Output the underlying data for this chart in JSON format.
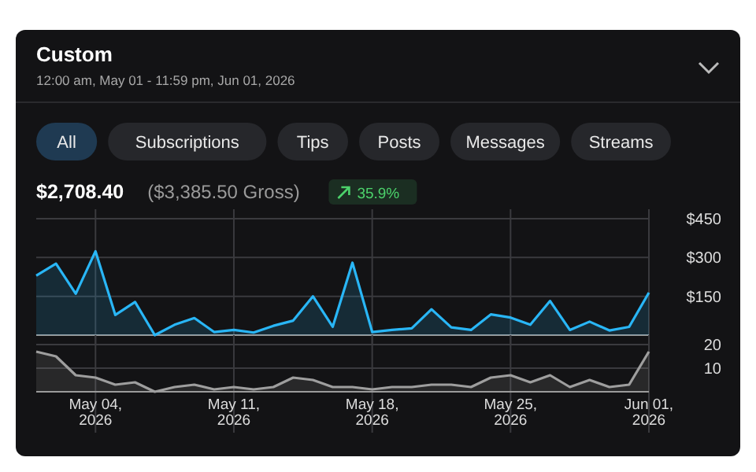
{
  "chart_data": [
    {
      "type": "area",
      "title": "Custom",
      "subtitle": "12:00 am, May 01 - 11:59 pm, Jun 01, 2026",
      "annotations": [
        "All",
        "Subscriptions",
        "Tips",
        "Posts",
        "Messages",
        "Streams",
        "$2,708.40",
        "($3,385.50 Gross)",
        "35.9%"
      ],
      "x": [
        "2026-05-01",
        "2026-05-02",
        "2026-05-03",
        "2026-05-04",
        "2026-05-05",
        "2026-05-06",
        "2026-05-07",
        "2026-05-08",
        "2026-05-09",
        "2026-05-10",
        "2026-05-11",
        "2026-05-12",
        "2026-05-13",
        "2026-05-14",
        "2026-05-15",
        "2026-05-16",
        "2026-05-17",
        "2026-05-18",
        "2026-05-19",
        "2026-05-20",
        "2026-05-21",
        "2026-05-22",
        "2026-05-23",
        "2026-05-24",
        "2026-05-25",
        "2026-05-26",
        "2026-05-27",
        "2026-05-28",
        "2026-05-29",
        "2026-05-30",
        "2026-05-31",
        "2026-06-01"
      ],
      "series": [
        {
          "color": "#29b6f6",
          "values": [
            230,
            276,
            160,
            324,
            78,
            128,
            0,
            40,
            66,
            12,
            20,
            10,
            36,
            56,
            150,
            32,
            280,
            12,
            20,
            26,
            100,
            30,
            20,
            80,
            68,
            40,
            132,
            20,
            52,
            18,
            32,
            164
          ]
        }
      ],
      "xlim": [
        "2026-05-01",
        "2026-06-01"
      ],
      "xticks": [
        "2026-05-04",
        "2026-05-11",
        "2026-05-18",
        "2026-05-25",
        "2026-06-01"
      ],
      "ylim": [
        0,
        450
      ],
      "yticks": [
        {
          "value": 150,
          "label": "$150"
        },
        {
          "value": 300,
          "label": "$300"
        },
        {
          "value": 450,
          "label": "$450"
        }
      ],
      "grid": true,
      "tick_labels": "y"
    },
    {
      "type": "area",
      "x": [
        "2026-05-01",
        "2026-05-02",
        "2026-05-03",
        "2026-05-04",
        "2026-05-05",
        "2026-05-06",
        "2026-05-07",
        "2026-05-08",
        "2026-05-09",
        "2026-05-10",
        "2026-05-11",
        "2026-05-12",
        "2026-05-13",
        "2026-05-14",
        "2026-05-15",
        "2026-05-16",
        "2026-05-17",
        "2026-05-18",
        "2026-05-19",
        "2026-05-20",
        "2026-05-21",
        "2026-05-22",
        "2026-05-23",
        "2026-05-24",
        "2026-05-25",
        "2026-05-26",
        "2026-05-27",
        "2026-05-28",
        "2026-05-29",
        "2026-05-30",
        "2026-05-31",
        "2026-06-01"
      ],
      "series": [
        {
          "color": "#9e9e9e",
          "values": [
            17,
            15,
            7,
            6,
            3,
            4,
            0,
            2,
            3,
            1,
            2,
            1,
            2,
            6,
            5,
            2,
            2,
            1,
            2,
            2,
            3,
            3,
            2,
            6,
            7,
            4,
            7,
            2,
            5,
            2,
            3,
            17
          ]
        }
      ],
      "xlim": [
        "2026-05-01",
        "2026-06-01"
      ],
      "xticks": [
        {
          "value": "2026-05-04",
          "label": "May 04, 2026"
        },
        {
          "value": "2026-05-11",
          "label": "May 11, 2026"
        },
        {
          "value": "2026-05-18",
          "label": "May 18, 2026"
        },
        {
          "value": "2026-05-25",
          "label": "May 25, 2026"
        },
        {
          "value": "2026-06-01",
          "label": "Jun 01, 2026"
        }
      ],
      "ylim": [
        0,
        20
      ],
      "yticks": [
        10,
        20
      ],
      "grid": true
    }
  ]
}
